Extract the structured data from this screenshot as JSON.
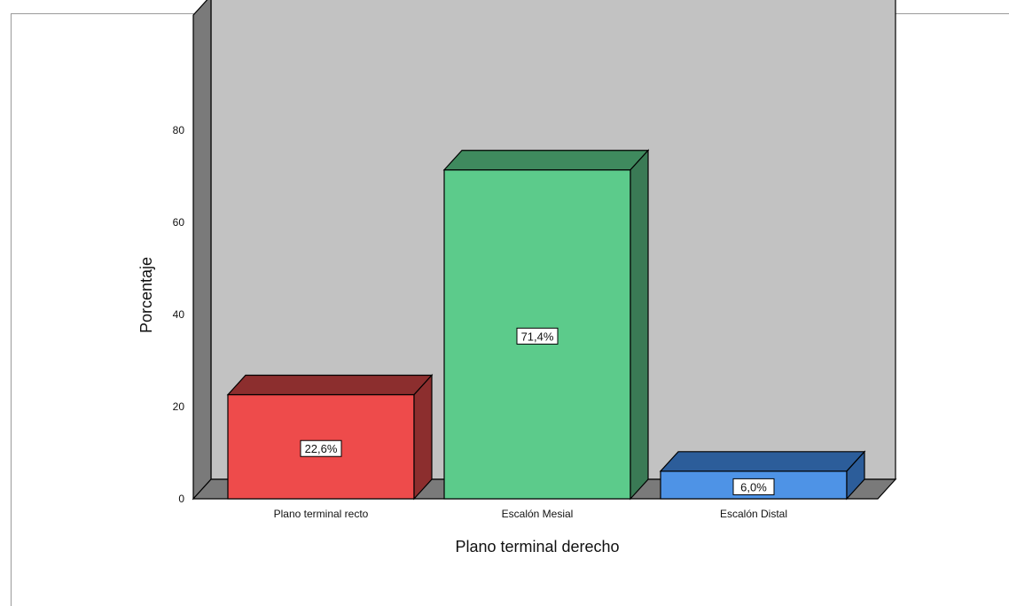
{
  "chart_data": {
    "type": "bar",
    "title": "",
    "xlabel": "Plano terminal derecho",
    "ylabel": "Porcentaje",
    "categories": [
      "Plano terminal recto",
      "Escalón Mesial",
      "Escalón Distal"
    ],
    "values": [
      22.6,
      71.4,
      6.0
    ],
    "data_labels": [
      "22,6%",
      "71,4%",
      "6,0%"
    ],
    "yticks": [
      0,
      20,
      40,
      60,
      80
    ],
    "ylim": [
      0,
      80
    ],
    "grid": false,
    "style": "3d",
    "colors": {
      "bars": [
        "#ee4b4b",
        "#5ccb8b",
        "#4e93e6"
      ],
      "bar_tops": [
        "#8c2e2e",
        "#3f8a5e",
        "#2c5d9a"
      ],
      "bar_sides": [
        "#8c2e2e",
        "#3a7a55",
        "#2c5d9a"
      ],
      "back_wall": "#c2c2c2",
      "side_wall": "#7a7a7a",
      "floor": "#7a7a7a"
    }
  }
}
